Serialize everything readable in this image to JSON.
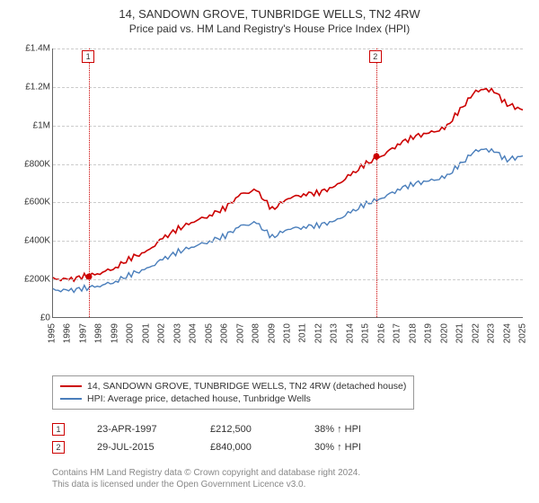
{
  "title_line1": "14, SANDOWN GROVE, TUNBRIDGE WELLS, TN2 4RW",
  "title_line2": "Price paid vs. HM Land Registry's House Price Index (HPI)",
  "chart": {
    "type": "line",
    "x_years": [
      1995,
      1996,
      1997,
      1998,
      1999,
      2000,
      2001,
      2002,
      2003,
      2004,
      2005,
      2006,
      2007,
      2008,
      2009,
      2010,
      2011,
      2012,
      2013,
      2014,
      2015,
      2016,
      2017,
      2018,
      2019,
      2020,
      2021,
      2022,
      2023,
      2024,
      2025
    ],
    "ylim": [
      0,
      1400000
    ],
    "ytick_step": 200000,
    "ytick_labels": [
      "£0",
      "£200K",
      "£400K",
      "£600K",
      "£800K",
      "£1M",
      "£1.2M",
      "£1.4M"
    ],
    "grid_color": "#cccccc",
    "axis_color": "#666666",
    "background_color": "#ffffff",
    "label_fontsize": 10,
    "title_fontsize": 13,
    "series": [
      {
        "name": "14, SANDOWN GROVE, TUNBRIDGE WELLS, TN2 4RW (detached house)",
        "color": "#cc0000",
        "line_width": 1.6,
        "values": [
          198,
          195,
          212,
          230,
          258,
          310,
          340,
          410,
          460,
          500,
          530,
          570,
          640,
          660,
          560,
          620,
          640,
          650,
          680,
          740,
          800,
          840,
          900,
          940,
          960,
          980,
          1080,
          1180,
          1190,
          1110,
          1080
        ],
        "values_unit": "thousands_gbp"
      },
      {
        "name": "HPI: Average price, detached house, Tunbridge Wells",
        "color": "#4a7ebb",
        "line_width": 1.4,
        "values": [
          140,
          138,
          150,
          165,
          185,
          225,
          250,
          300,
          340,
          370,
          395,
          425,
          475,
          490,
          415,
          460,
          470,
          480,
          500,
          545,
          590,
          620,
          665,
          695,
          710,
          725,
          795,
          870,
          875,
          820,
          840
        ],
        "values_unit": "thousands_gbp"
      }
    ],
    "vertical_markers": [
      {
        "id": "1",
        "year": 1997.3,
        "color": "#cc0000"
      },
      {
        "id": "2",
        "year": 2015.6,
        "color": "#cc0000"
      }
    ],
    "sale_points": [
      {
        "year": 1997.3,
        "value": 212.5,
        "color": "#cc0000"
      },
      {
        "year": 2015.6,
        "value": 840,
        "color": "#cc0000"
      }
    ]
  },
  "legend": {
    "items": [
      {
        "color": "#cc0000",
        "label": "14, SANDOWN GROVE, TUNBRIDGE WELLS, TN2 4RW (detached house)"
      },
      {
        "color": "#4a7ebb",
        "label": "HPI: Average price, detached house, Tunbridge Wells"
      }
    ]
  },
  "sales": [
    {
      "id": "1",
      "marker_color": "#cc0000",
      "date": "23-APR-1997",
      "price": "£212,500",
      "delta": "38% ↑ HPI"
    },
    {
      "id": "2",
      "marker_color": "#cc0000",
      "date": "29-JUL-2015",
      "price": "£840,000",
      "delta": "30% ↑ HPI"
    }
  ],
  "footer_line1": "Contains HM Land Registry data © Crown copyright and database right 2024.",
  "footer_line2": "This data is licensed under the Open Government Licence v3.0."
}
